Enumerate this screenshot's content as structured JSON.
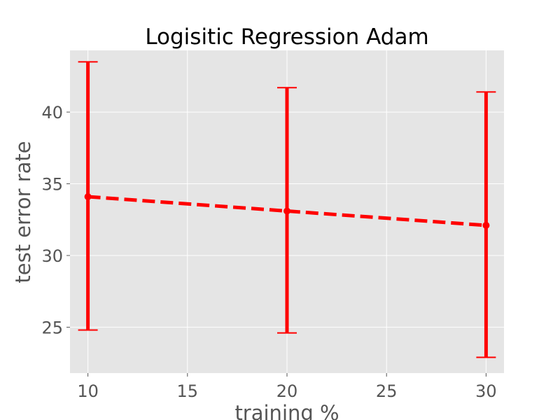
{
  "chart_data": {
    "type": "line",
    "title": "Logisitic Regression Adam",
    "xlabel": "training %",
    "ylabel": "test error rate",
    "xlim": [
      9.1,
      30.9
    ],
    "ylim": [
      21.8,
      44.3
    ],
    "xticks": [
      10,
      15,
      20,
      25,
      30
    ],
    "yticks": [
      25,
      30,
      35,
      40
    ],
    "grid": true,
    "legend": "none",
    "series": [
      {
        "x": [
          10,
          20,
          30
        ],
        "y": [
          34.1,
          33.1,
          32.1
        ],
        "yerr_low": [
          24.8,
          24.6,
          22.9
        ],
        "yerr_high": [
          43.5,
          41.7,
          41.4
        ],
        "color": "#ff0000",
        "linestyle": "dashed",
        "marker": "circle"
      }
    ]
  },
  "colors": {
    "plot_background": "#e5e5e5",
    "grid": "#ffffff",
    "series": "#ff0000",
    "tick_text": "#555555",
    "title_text": "#000000"
  }
}
